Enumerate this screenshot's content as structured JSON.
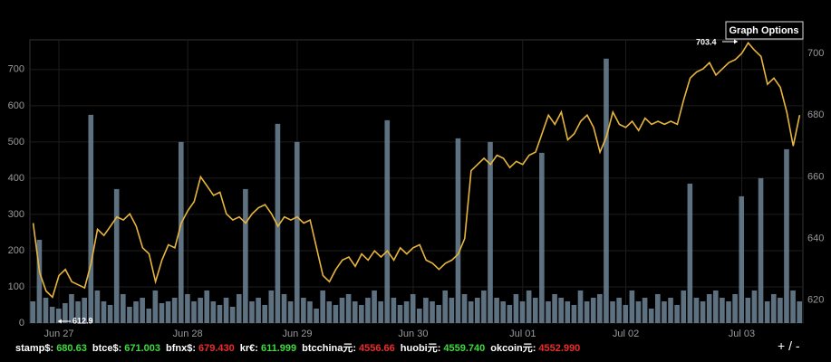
{
  "chart_data": {
    "type": "combo",
    "categories": [
      null,
      null,
      null,
      null,
      "Jun 27",
      null,
      null,
      null,
      null,
      null,
      null,
      null,
      null,
      null,
      null,
      null,
      null,
      null,
      null,
      null,
      null,
      null,
      null,
      null,
      "Jun 28",
      null,
      null,
      null,
      null,
      null,
      null,
      null,
      null,
      null,
      null,
      null,
      null,
      null,
      null,
      null,
      null,
      "Jun 29",
      null,
      null,
      null,
      null,
      null,
      null,
      null,
      null,
      null,
      null,
      null,
      null,
      null,
      null,
      null,
      null,
      null,
      "Jun 30",
      null,
      null,
      null,
      null,
      null,
      null,
      null,
      null,
      null,
      null,
      null,
      null,
      null,
      null,
      null,
      null,
      "Jul 01",
      null,
      null,
      null,
      null,
      null,
      null,
      null,
      null,
      null,
      null,
      null,
      null,
      null,
      null,
      null,
      "Jul 02",
      null,
      null,
      null,
      null,
      null,
      null,
      null,
      null,
      null,
      null,
      null,
      null,
      null,
      null,
      null,
      null,
      null,
      "Jul 03",
      null,
      null,
      null,
      null,
      null,
      null,
      null,
      null,
      null
    ],
    "series": [
      {
        "type": "bar",
        "axis": "y",
        "color": "#6f8598",
        "values": [
          60,
          230,
          70,
          45,
          40,
          55,
          80,
          60,
          70,
          575,
          90,
          60,
          50,
          370,
          80,
          45,
          60,
          70,
          40,
          90,
          55,
          60,
          70,
          500,
          80,
          60,
          70,
          90,
          60,
          50,
          70,
          45,
          80,
          370,
          60,
          70,
          50,
          90,
          550,
          80,
          60,
          500,
          70,
          60,
          40,
          90,
          60,
          50,
          70,
          80,
          60,
          50,
          70,
          90,
          60,
          560,
          70,
          50,
          60,
          80,
          40,
          70,
          60,
          50,
          90,
          70,
          510,
          80,
          60,
          70,
          90,
          500,
          70,
          60,
          50,
          80,
          60,
          90,
          70,
          470,
          60,
          80,
          70,
          60,
          50,
          90,
          60,
          70,
          80,
          730,
          60,
          70,
          50,
          90,
          60,
          70,
          40,
          80,
          60,
          70,
          50,
          90,
          385,
          70,
          60,
          80,
          90,
          70,
          60,
          80,
          350,
          70,
          90,
          400,
          60,
          80,
          70,
          480,
          90,
          60
        ]
      },
      {
        "type": "line",
        "axis": "y2",
        "color": "#e8b53c",
        "values": [
          645,
          629,
          623,
          621,
          628,
          630,
          626,
          625,
          624,
          632,
          643,
          641,
          644,
          647,
          646,
          648,
          644,
          637,
          635,
          626,
          633,
          638,
          637,
          645,
          649,
          652,
          660,
          657,
          654,
          655,
          648,
          646,
          647,
          645,
          648,
          650,
          651,
          648,
          644,
          647,
          646,
          647,
          645,
          646,
          637,
          628,
          626,
          630,
          633,
          634,
          631,
          635,
          633,
          636,
          634,
          636,
          633,
          637,
          635,
          637,
          638,
          633,
          632,
          630,
          632,
          633,
          635,
          640,
          662,
          664,
          666,
          664,
          667,
          666,
          663,
          665,
          664,
          667,
          668,
          674,
          680,
          677,
          681,
          672,
          674,
          678,
          680,
          676,
          668,
          673,
          681,
          677,
          676,
          678,
          675,
          679,
          677,
          678,
          677,
          678,
          677,
          685,
          692,
          694,
          695,
          697,
          693,
          695,
          697,
          698,
          700,
          703.4,
          701,
          699,
          690,
          692,
          689,
          681,
          670,
          680
        ]
      }
    ],
    "ylim": [
      0,
      782
    ],
    "yticks": [
      0,
      100,
      200,
      300,
      400,
      500,
      600,
      700
    ],
    "y2lim": [
      612.6,
      704.4
    ],
    "y2ticks": [
      620,
      640,
      660,
      680,
      700
    ],
    "grid": true,
    "high_label": "703.4",
    "low_label": "612.9",
    "options_button": "Graph Options",
    "zoom": "+ / -"
  },
  "tickers": [
    {
      "label": "stamp$:",
      "value": "680.63",
      "color": "#3ddc3d"
    },
    {
      "label": "btce$:",
      "value": "671.003",
      "color": "#3ddc3d"
    },
    {
      "label": "bfnx$:",
      "value": "679.430",
      "color": "#ee2b2b"
    },
    {
      "label": "kr€:",
      "value": "611.999",
      "color": "#3ddc3d"
    },
    {
      "label": "btcchina元:",
      "value": "4556.66",
      "color": "#ee2b2b"
    },
    {
      "label": "huobi元:",
      "value": "4559.740",
      "color": "#3ddc3d"
    },
    {
      "label": "okcoin元:",
      "value": "4552.990",
      "color": "#ee2b2b"
    }
  ]
}
